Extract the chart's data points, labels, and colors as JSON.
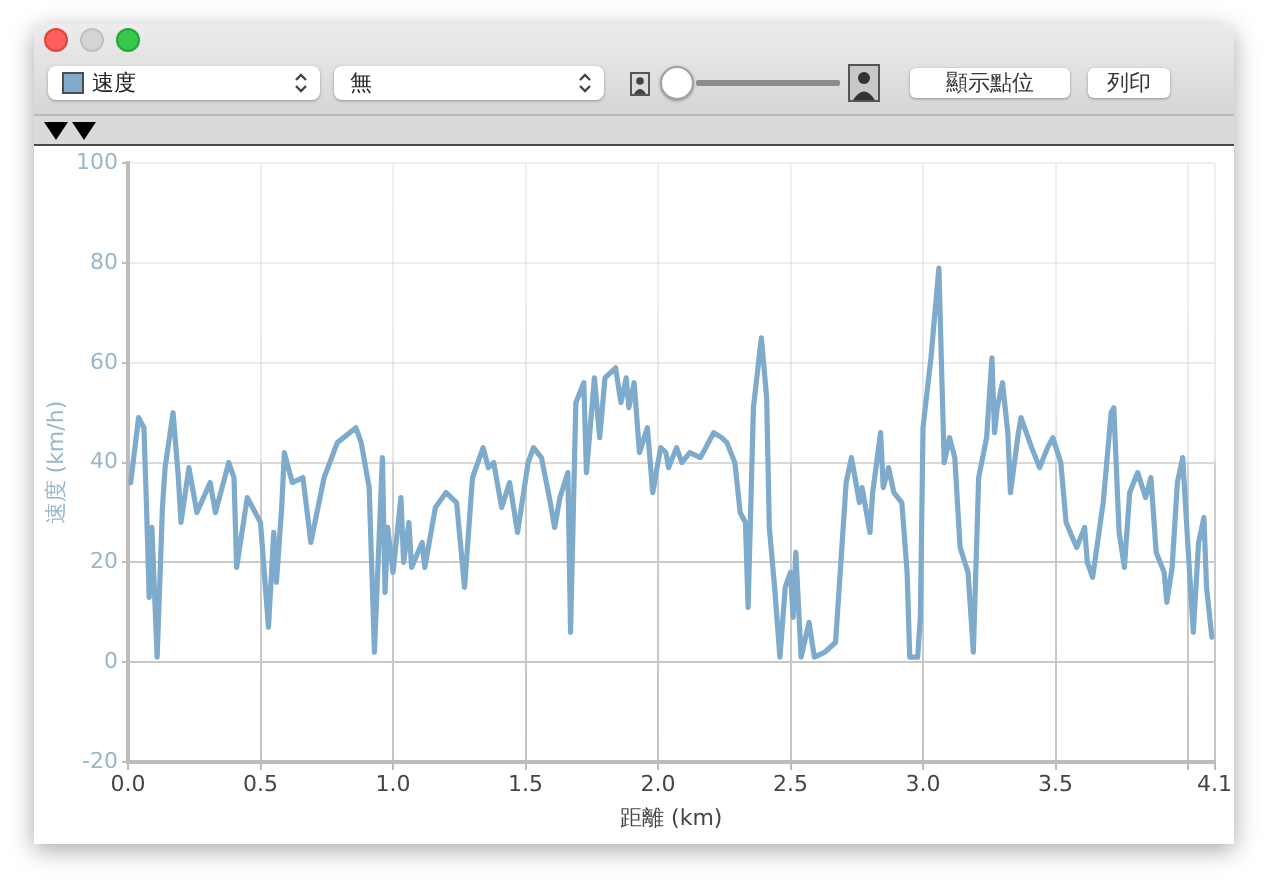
{
  "chart_data": {
    "type": "line",
    "xlabel": "距離 (km)",
    "ylabel": "速度 (km/h)",
    "annotations": [
      "速度",
      "無",
      "顯示點位",
      "列印"
    ],
    "x": [
      0.01,
      0.04,
      0.06,
      0.07,
      0.08,
      0.09,
      0.11,
      0.13,
      0.14,
      0.17,
      0.19,
      0.2,
      0.23,
      0.26,
      0.31,
      0.33,
      0.38,
      0.4,
      0.41,
      0.45,
      0.5,
      0.53,
      0.55,
      0.56,
      0.58,
      0.59,
      0.62,
      0.66,
      0.69,
      0.74,
      0.79,
      0.86,
      0.88,
      0.91,
      0.93,
      0.96,
      0.97,
      0.98,
      1.0,
      1.03,
      1.04,
      1.06,
      1.07,
      1.11,
      1.12,
      1.16,
      1.2,
      1.24,
      1.27,
      1.3,
      1.34,
      1.36,
      1.38,
      1.41,
      1.44,
      1.47,
      1.51,
      1.53,
      1.56,
      1.59,
      1.61,
      1.63,
      1.66,
      1.67,
      1.69,
      1.72,
      1.73,
      1.76,
      1.78,
      1.8,
      1.84,
      1.86,
      1.88,
      1.89,
      1.91,
      1.93,
      1.96,
      1.98,
      2.01,
      2.03,
      2.04,
      2.07,
      2.09,
      2.12,
      2.16,
      2.21,
      2.24,
      2.26,
      2.29,
      2.31,
      2.33,
      2.34,
      2.36,
      2.39,
      2.41,
      2.42,
      2.44,
      2.46,
      2.48,
      2.5,
      2.51,
      2.52,
      2.54,
      2.57,
      2.59,
      2.63,
      2.67,
      2.71,
      2.73,
      2.76,
      2.77,
      2.8,
      2.81,
      2.84,
      2.85,
      2.87,
      2.89,
      2.92,
      2.94,
      2.95,
      2.98,
      2.99,
      3.0,
      3.03,
      3.06,
      3.07,
      3.08,
      3.1,
      3.12,
      3.14,
      3.17,
      3.19,
      3.21,
      3.24,
      3.26,
      3.27,
      3.28,
      3.3,
      3.32,
      3.33,
      3.36,
      3.37,
      3.41,
      3.44,
      3.47,
      3.49,
      3.52,
      3.54,
      3.58,
      3.61,
      3.62,
      3.64,
      3.68,
      3.71,
      3.72,
      3.74,
      3.76,
      3.78,
      3.81,
      3.84,
      3.86,
      3.88,
      3.91,
      3.92,
      3.94,
      3.96,
      3.98,
      4.0,
      4.02,
      4.04,
      4.06,
      4.07,
      4.09
    ],
    "series": [
      {
        "color": "#7eaacb",
        "values": [
          36,
          49,
          47,
          31,
          13,
          27,
          1,
          31,
          39,
          50,
          37,
          28,
          39,
          30,
          36,
          30,
          40,
          37,
          19,
          33,
          28,
          7,
          26,
          16,
          31,
          42,
          36,
          37,
          24,
          37,
          44,
          47,
          44,
          35,
          2,
          41,
          14,
          27,
          18,
          33,
          20,
          28,
          19,
          24,
          19,
          31,
          34,
          32,
          15,
          37,
          43,
          39,
          40,
          31,
          36,
          26,
          40,
          43,
          41,
          33,
          27,
          33,
          38,
          6,
          52,
          56,
          38,
          57,
          45,
          57,
          59,
          52,
          57,
          51,
          56,
          42,
          47,
          34,
          43,
          42,
          39,
          43,
          40,
          42,
          41,
          46,
          45,
          44,
          40,
          30,
          28,
          11,
          51,
          65,
          53,
          27,
          15,
          1,
          15,
          18,
          9,
          22,
          1,
          8,
          1,
          2,
          4,
          36,
          41,
          32,
          35,
          26,
          34,
          46,
          35,
          39,
          34,
          32,
          18,
          1,
          1,
          9,
          47,
          61,
          79,
          59,
          40,
          45,
          41,
          23,
          18,
          2,
          37,
          45,
          61,
          46,
          51,
          56,
          46,
          34,
          46,
          49,
          43,
          39,
          43,
          45,
          40,
          28,
          23,
          27,
          20,
          17,
          32,
          50,
          51,
          26,
          19,
          34,
          38,
          33,
          37,
          22,
          18,
          12,
          19,
          36,
          41,
          23,
          6,
          24,
          29,
          15,
          5
        ]
      }
    ],
    "xlim": [
      0,
      4.1
    ],
    "xticks": [
      {
        "value": 0,
        "label": "0.0"
      },
      0.5,
      {
        "value": 1,
        "label": "1.0"
      },
      1.5,
      {
        "value": 2,
        "label": "2.0"
      },
      2.5,
      {
        "value": 3,
        "label": "3.0"
      },
      3.5,
      {
        "value": 4,
        "label": null
      },
      4.1
    ],
    "ylim": [
      -20,
      100
    ],
    "yticks": [
      -20,
      0,
      20,
      40,
      60,
      80,
      100
    ],
    "grid": true
  }
}
